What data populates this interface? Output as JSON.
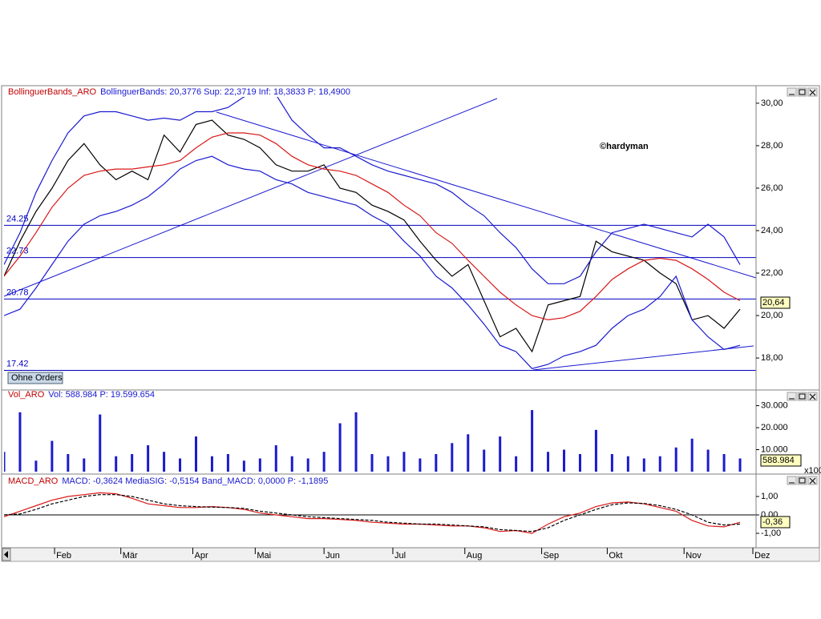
{
  "chart_data": [
    {
      "type": "line",
      "name": "BollinguerBands_ARO",
      "info": "BollinguerBands: 20,3776 Sup: 22,3719 Inf: 18,3833 P: 18,4900",
      "watermark": "©hardyman",
      "button": "Ohne Orders",
      "last_label": "20,64",
      "xlim": [
        0,
        47
      ],
      "x": [
        0,
        1,
        2,
        3,
        4,
        5,
        6,
        7,
        8,
        9,
        10,
        11,
        12,
        13,
        14,
        15,
        16,
        17,
        18,
        19,
        20,
        21,
        22,
        23,
        24,
        25,
        26,
        27,
        28,
        29,
        30,
        31,
        32,
        33,
        34,
        35,
        36,
        37,
        38,
        39,
        40,
        41,
        42,
        43,
        44,
        45,
        46
      ],
      "ylim": [
        16.57,
        30.26
      ],
      "yticks": [
        {
          "value": 18,
          "label": "18,00"
        },
        {
          "value": 20,
          "label": "20,00"
        },
        {
          "value": 22,
          "label": "22,00"
        },
        {
          "value": 24,
          "label": "24,00"
        },
        {
          "value": 26,
          "label": "26,00"
        },
        {
          "value": 28,
          "label": "28,00"
        },
        {
          "value": 30,
          "label": "30,00"
        }
      ],
      "levels": [
        24.25,
        22.73,
        20.78,
        17.42
      ],
      "level_color": "#0000c0",
      "series": [
        {
          "color": "#000000",
          "values": [
            21.85,
            23.5,
            24.9,
            26,
            27.3,
            28.1,
            27.1,
            26.4,
            26.8,
            26.4,
            28.5,
            27.7,
            29,
            29.2,
            28.5,
            28.3,
            27.9,
            27.1,
            26.8,
            26.8,
            27.1,
            26,
            25.8,
            25.2,
            24.9,
            24.5,
            23.5,
            22.6,
            21.85,
            22.4,
            20.7,
            19,
            19.4,
            18.3,
            20.5,
            20.7,
            20.9,
            23.5,
            23,
            22.8,
            22.6,
            22,
            21.5,
            19.8,
            20,
            19.4,
            20.3
          ]
        },
        {
          "color": "#1a1ad0",
          "values": [
            22.4,
            23.9,
            25.8,
            27.3,
            28.6,
            29.4,
            29.6,
            29.6,
            29.4,
            29.2,
            29.3,
            29.2,
            29.6,
            29.6,
            29.8,
            30.3,
            30.5,
            30.4,
            29.2,
            28.5,
            27.9,
            27.9,
            27.5,
            27.1,
            26.8,
            26.6,
            26.4,
            26.2,
            25.8,
            25.2,
            24.7,
            23.9,
            23.2,
            22.2,
            21.5,
            21.5,
            21.85,
            23,
            23.9,
            24.1,
            24.3,
            24.1,
            23.9,
            23.7,
            24.3,
            23.7,
            22.4
          ]
        },
        {
          "color": "#d81818",
          "values": [
            21.85,
            22.8,
            23.9,
            25.1,
            26,
            26.6,
            26.8,
            26.9,
            26.9,
            27,
            27.1,
            27.3,
            27.9,
            28.4,
            28.6,
            28.6,
            28.5,
            28.1,
            27.5,
            27.1,
            26.9,
            26.8,
            26.6,
            26.2,
            25.8,
            25.2,
            24.7,
            23.9,
            23.4,
            22.6,
            21.85,
            21.1,
            20.5,
            20,
            19.8,
            19.9,
            20.2,
            20.9,
            21.7,
            22.2,
            22.6,
            22.7,
            22.6,
            22.2,
            21.7,
            21.1,
            20.7
          ]
        },
        {
          "color": "#1a1ad0",
          "values": [
            20,
            20.3,
            21.3,
            22.4,
            23.5,
            24.3,
            24.7,
            24.9,
            25.2,
            25.6,
            26.2,
            26.9,
            27.3,
            27.5,
            27.1,
            26.9,
            26.8,
            26.4,
            26.2,
            25.8,
            25.6,
            25.4,
            25.2,
            24.7,
            24.3,
            23.5,
            22.8,
            21.85,
            21.3,
            20.5,
            19.6,
            18.6,
            18.3,
            17.5,
            17.7,
            18.1,
            18.3,
            18.6,
            19.4,
            20,
            20.3,
            20.9,
            21.85,
            19.8,
            19,
            18.4,
            18.6
          ]
        }
      ]
    },
    {
      "type": "bar",
      "name": "Vol_ARO",
      "info": "Vol: 588.984 P: 19.599.654",
      "last_label": "588.984",
      "scale_note": "x100",
      "xlim": [
        0,
        47
      ],
      "x": [
        0,
        1,
        2,
        3,
        4,
        5,
        6,
        7,
        8,
        9,
        10,
        11,
        12,
        13,
        14,
        15,
        16,
        17,
        18,
        19,
        20,
        21,
        22,
        23,
        24,
        25,
        26,
        27,
        28,
        29,
        30,
        31,
        32,
        33,
        34,
        35,
        36,
        37,
        38,
        39,
        40,
        41,
        42,
        43,
        44,
        45,
        46
      ],
      "ylim": [
        0,
        32400
      ],
      "yticks": [
        {
          "value": 10000,
          "label": "10.000"
        },
        {
          "value": 20000,
          "label": "20.000"
        },
        {
          "value": 30000,
          "label": "30.000"
        }
      ],
      "color": "#1a1ad0",
      "values": [
        9000,
        27000,
        5000,
        14000,
        8000,
        6000,
        26000,
        7000,
        8000,
        12000,
        9000,
        6000,
        16000,
        7000,
        8000,
        5000,
        6000,
        12000,
        7000,
        6000,
        9000,
        22000,
        27000,
        8000,
        7000,
        9000,
        6000,
        8000,
        13000,
        17000,
        10000,
        16000,
        7000,
        28000,
        9000,
        10000,
        8000,
        19000,
        8000,
        7000,
        6000,
        7000,
        11000,
        15000,
        10000,
        8000,
        6000
      ]
    },
    {
      "type": "line",
      "name": "MACD_ARO",
      "info": "MACD: -0,3624 MediaSIG: -0,5154 Band_MACD: 0,0000 P: -1,1895",
      "last_label": "-0,36",
      "xlim": [
        0,
        47
      ],
      "x": [
        0,
        1,
        2,
        3,
        4,
        5,
        6,
        7,
        8,
        9,
        10,
        11,
        12,
        13,
        14,
        15,
        16,
        17,
        18,
        19,
        20,
        21,
        22,
        23,
        24,
        25,
        26,
        27,
        28,
        29,
        30,
        31,
        32,
        33,
        34,
        35,
        36,
        37,
        38,
        39,
        40,
        41,
        42,
        43,
        44,
        45,
        46
      ],
      "xticks": [
        {
          "value": 3.16,
          "label": "Feb"
        },
        {
          "value": 7.3,
          "label": "Mär"
        },
        {
          "value": 11.8,
          "label": "Apr"
        },
        {
          "value": 15.7,
          "label": "Mai"
        },
        {
          "value": 20.0,
          "label": "Jun"
        },
        {
          "value": 24.3,
          "label": "Jul"
        },
        {
          "value": 28.8,
          "label": "Aug"
        },
        {
          "value": 33.6,
          "label": "Sep"
        },
        {
          "value": 37.7,
          "label": "Okt"
        },
        {
          "value": 42.5,
          "label": "Nov"
        },
        {
          "value": 46.8,
          "label": "Dez"
        }
      ],
      "ylim": [
        -1.74,
        1.87
      ],
      "yticks": [
        {
          "value": -1,
          "label": "-1,00"
        },
        {
          "value": 0,
          "label": "0,00"
        },
        {
          "value": 1,
          "label": "1,00"
        }
      ],
      "series": [
        {
          "color": "#d81818",
          "dash": false,
          "values": [
            -0.1,
            0.2,
            0.5,
            0.8,
            1.0,
            1.1,
            1.2,
            1.15,
            0.9,
            0.6,
            0.5,
            0.4,
            0.4,
            0.45,
            0.4,
            0.3,
            0.1,
            0.0,
            -0.1,
            -0.2,
            -0.2,
            -0.25,
            -0.3,
            -0.4,
            -0.45,
            -0.5,
            -0.5,
            -0.55,
            -0.6,
            -0.6,
            -0.7,
            -0.9,
            -0.85,
            -1.0,
            -0.5,
            -0.1,
            0.1,
            0.45,
            0.65,
            0.7,
            0.6,
            0.4,
            0.2,
            -0.3,
            -0.6,
            -0.65,
            -0.4
          ]
        },
        {
          "color": "#000000",
          "dash": true,
          "values": [
            0.0,
            0.05,
            0.3,
            0.6,
            0.8,
            1.0,
            1.1,
            1.1,
            1.0,
            0.8,
            0.6,
            0.5,
            0.45,
            0.42,
            0.4,
            0.35,
            0.2,
            0.1,
            0.0,
            -0.1,
            -0.15,
            -0.2,
            -0.25,
            -0.3,
            -0.4,
            -0.45,
            -0.5,
            -0.5,
            -0.55,
            -0.6,
            -0.65,
            -0.8,
            -0.85,
            -0.9,
            -0.7,
            -0.3,
            0.0,
            0.3,
            0.55,
            0.65,
            0.62,
            0.5,
            0.3,
            0.0,
            -0.4,
            -0.55,
            -0.5
          ]
        }
      ]
    }
  ]
}
